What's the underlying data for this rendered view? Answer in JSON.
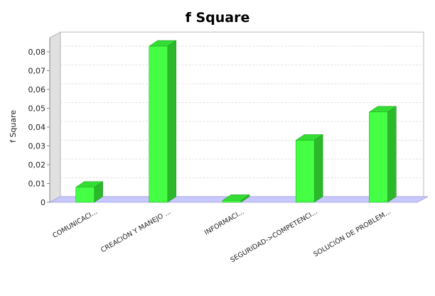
{
  "chart_data": {
    "type": "bar",
    "title": "f Square",
    "xlabel": "",
    "ylabel": "f Square",
    "categories": [
      "COMUNICACI...",
      "CREACIÓN Y MANEJO ...",
      "INFORMACI...",
      "SEGURIDAD->COMPETENCI...",
      "SOLUCIÓN DE PROBLEM..."
    ],
    "values": [
      0.008,
      0.083,
      0.001,
      0.033,
      0.048
    ],
    "yticks": [
      "0",
      "0,01",
      "0,02",
      "0,03",
      "0,04",
      "0,05",
      "0,06",
      "0,07",
      "0,08"
    ],
    "ylim": [
      0,
      0.08
    ],
    "grid": true,
    "three_d": true,
    "colors": {
      "bar_front": "#44FF44",
      "bar_side": "#2BB82B",
      "bar_top": "#33DD33",
      "floor": "#C8C8FF",
      "wall": "#E0E0E0"
    }
  }
}
